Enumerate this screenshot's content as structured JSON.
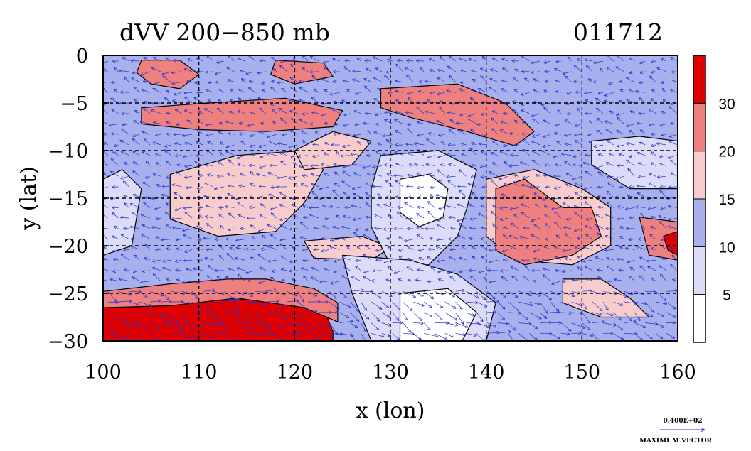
{
  "chart_data": {
    "type": "heatmap",
    "title": "dVV 200−850 mb",
    "date_label": "011712",
    "xlabel": "x (lon)",
    "ylabel": "y (lat)",
    "xlim": [
      100,
      160
    ],
    "ylim": [
      -30,
      0
    ],
    "x_ticks": [
      100,
      110,
      120,
      130,
      140,
      150,
      160
    ],
    "y_ticks": [
      0,
      -5,
      -10,
      -15,
      -20,
      -25,
      -30
    ],
    "x_tick_labels": [
      "100",
      "110",
      "120",
      "130",
      "140",
      "150",
      "160"
    ],
    "y_tick_labels": [
      "0",
      "−5",
      "−10",
      "−15",
      "−20",
      "−25",
      "−30"
    ],
    "grid": true,
    "colorbar": {
      "levels": [
        0,
        5,
        10,
        15,
        20,
        30,
        40
      ],
      "tick_labels": [
        "5",
        "10",
        "15",
        "20",
        "30"
      ],
      "colors": [
        "#ffffff",
        "#dcdcf8",
        "#a8b0ee",
        "#f8cccc",
        "#ee8080",
        "#e00000"
      ]
    },
    "regions": [
      {
        "name": "red-band-sw",
        "bin": 5,
        "poly": [
          [
            100,
            -26.5
          ],
          [
            107,
            -26
          ],
          [
            113,
            -25.7
          ],
          [
            119,
            -25.5
          ],
          [
            123,
            -26.5
          ],
          [
            124,
            -29
          ],
          [
            124,
            -30
          ],
          [
            100,
            -30
          ]
        ]
      },
      {
        "name": "pink-band-sw",
        "bin": 4,
        "poly": [
          [
            100,
            -24.8
          ],
          [
            107,
            -24
          ],
          [
            113,
            -23.5
          ],
          [
            117,
            -23.5
          ],
          [
            122,
            -24.5
          ],
          [
            124.5,
            -26
          ],
          [
            124.5,
            -28
          ],
          [
            121,
            -26.5
          ],
          [
            114,
            -25.5
          ],
          [
            107,
            -26.3
          ],
          [
            100,
            -26.5
          ]
        ]
      },
      {
        "name": "pink-band-north",
        "bin": 4,
        "poly": [
          [
            104,
            -5.5
          ],
          [
            111,
            -5
          ],
          [
            119,
            -4.5
          ],
          [
            125,
            -5.8
          ],
          [
            124,
            -7.5
          ],
          [
            117,
            -8
          ],
          [
            110,
            -7.8
          ],
          [
            104,
            -7.2
          ]
        ]
      },
      {
        "name": "pink-band-ne",
        "bin": 4,
        "poly": [
          [
            129,
            -3.5
          ],
          [
            137,
            -3
          ],
          [
            142,
            -5
          ],
          [
            145,
            -8
          ],
          [
            143,
            -9.5
          ],
          [
            138,
            -8
          ],
          [
            132,
            -6.5
          ],
          [
            129,
            -5.5
          ]
        ]
      },
      {
        "name": "pink-blob-nw",
        "bin": 4,
        "poly": [
          [
            104,
            -0.5
          ],
          [
            108,
            -0.5
          ],
          [
            110,
            -2
          ],
          [
            108,
            -3.5
          ],
          [
            105,
            -3
          ],
          [
            103.5,
            -1.8
          ]
        ]
      },
      {
        "name": "pink-blob-n",
        "bin": 4,
        "poly": [
          [
            118,
            -0.5
          ],
          [
            123,
            -0.8
          ],
          [
            124,
            -2.2
          ],
          [
            120,
            -3
          ],
          [
            117.5,
            -2
          ]
        ]
      },
      {
        "name": "pink-band-west",
        "bin": 4,
        "poly": [
          [
            109,
            -13
          ],
          [
            114,
            -12
          ],
          [
            119,
            -12.5
          ],
          [
            121,
            -14.5
          ],
          [
            118,
            -17
          ],
          [
            113,
            -17.5
          ],
          [
            109,
            -16
          ]
        ]
      },
      {
        "name": "pink-band-west2",
        "bin": 3,
        "poly": [
          [
            107,
            -12.5
          ],
          [
            114,
            -10.5
          ],
          [
            121,
            -10
          ],
          [
            123,
            -12
          ],
          [
            121,
            -15.5
          ],
          [
            118,
            -18.5
          ],
          [
            112,
            -19
          ],
          [
            107,
            -17.2
          ]
        ]
      },
      {
        "name": "pink-band-mid",
        "bin": 3,
        "poly": [
          [
            120,
            -10
          ],
          [
            124,
            -8
          ],
          [
            128,
            -9
          ],
          [
            126,
            -11.5
          ],
          [
            121,
            -12
          ]
        ]
      },
      {
        "name": "pink-central",
        "bin": 3,
        "poly": [
          [
            121,
            -19.5
          ],
          [
            127,
            -19
          ],
          [
            130,
            -20.2
          ],
          [
            128,
            -21.5
          ],
          [
            122,
            -21.3
          ]
        ]
      },
      {
        "name": "pink-east-lt",
        "bin": 3,
        "poly": [
          [
            140,
            -13
          ],
          [
            145,
            -12
          ],
          [
            150,
            -14
          ],
          [
            153,
            -16
          ],
          [
            153,
            -20
          ],
          [
            149,
            -22
          ],
          [
            143,
            -21.5
          ],
          [
            140,
            -19
          ]
        ]
      },
      {
        "name": "pink-east",
        "bin": 4,
        "poly": [
          [
            141,
            -14
          ],
          [
            144,
            -13
          ],
          [
            148,
            -16
          ],
          [
            151,
            -16
          ],
          [
            152,
            -19
          ],
          [
            149,
            -21
          ],
          [
            144,
            -22
          ],
          [
            141,
            -20.5
          ]
        ]
      },
      {
        "name": "pink-far-east",
        "bin": 4,
        "poly": [
          [
            156,
            -17
          ],
          [
            160,
            -17.5
          ],
          [
            160,
            -21.5
          ],
          [
            157,
            -21
          ]
        ]
      },
      {
        "name": "red-far-east",
        "bin": 5,
        "poly": [
          [
            158.5,
            -19
          ],
          [
            160,
            -18.5
          ],
          [
            160,
            -21
          ],
          [
            159,
            -20.5
          ]
        ]
      },
      {
        "name": "pink-se-lt",
        "bin": 3,
        "poly": [
          [
            148,
            -23.5
          ],
          [
            152,
            -23.5
          ],
          [
            155,
            -25.5
          ],
          [
            157,
            -27.5
          ],
          [
            152,
            -27.5
          ],
          [
            148,
            -26
          ]
        ]
      },
      {
        "name": "light-centre",
        "bin": 1,
        "poly": [
          [
            129,
            -10.5
          ],
          [
            135,
            -10
          ],
          [
            139,
            -12
          ],
          [
            138,
            -16
          ],
          [
            137,
            -19
          ],
          [
            134,
            -22
          ],
          [
            130,
            -22
          ],
          [
            128,
            -18
          ],
          [
            128,
            -14
          ]
        ]
      },
      {
        "name": "white-centre",
        "bin": 0,
        "poly": [
          [
            131,
            -13
          ],
          [
            134,
            -12.5
          ],
          [
            136,
            -14
          ],
          [
            135.5,
            -17
          ],
          [
            133,
            -18
          ],
          [
            131,
            -16.5
          ]
        ]
      },
      {
        "name": "light-south",
        "bin": 1,
        "poly": [
          [
            125,
            -21
          ],
          [
            132,
            -21.5
          ],
          [
            137,
            -23
          ],
          [
            141,
            -26
          ],
          [
            140,
            -30
          ],
          [
            128,
            -30
          ],
          [
            126,
            -25
          ]
        ]
      },
      {
        "name": "white-south",
        "bin": 0,
        "poly": [
          [
            131,
            -25
          ],
          [
            136,
            -24.5
          ],
          [
            139,
            -27
          ],
          [
            137.5,
            -30
          ],
          [
            131,
            -30
          ]
        ]
      },
      {
        "name": "light-west",
        "bin": 1,
        "poly": [
          [
            100,
            -13
          ],
          [
            102,
            -12
          ],
          [
            104,
            -14
          ],
          [
            103,
            -20
          ],
          [
            100,
            -21
          ]
        ]
      },
      {
        "name": "light-ne",
        "bin": 1,
        "poly": [
          [
            151,
            -9
          ],
          [
            156,
            -8.5
          ],
          [
            160,
            -9
          ],
          [
            160,
            -14
          ],
          [
            155,
            -14
          ],
          [
            151,
            -11.5
          ]
        ]
      }
    ],
    "vector_reference": {
      "value_label": "0.400E+02",
      "caption": "MAXIMUM VECTOR"
    }
  }
}
